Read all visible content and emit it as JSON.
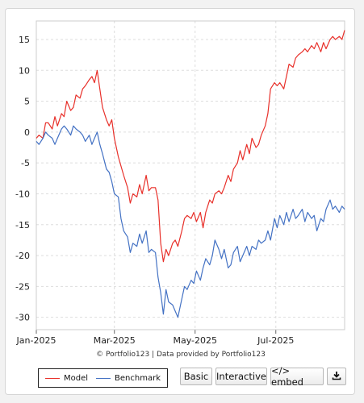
{
  "chart_data": {
    "type": "line",
    "title": "",
    "xlabel": "",
    "ylabel": "",
    "ylim": [
      -32,
      18
    ],
    "yticks": [
      15,
      10,
      5,
      0,
      -5,
      -10,
      -15,
      -20,
      -25,
      -30
    ],
    "x_tick_labels": [
      "Jan-2025",
      "Mar-2025",
      "May-2025",
      "Jul-2025"
    ],
    "x_tick_dates": [
      "2025-01-01",
      "2025-03-01",
      "2025-05-01",
      "2025-07-01"
    ],
    "x_range": [
      "2025-01-01",
      "2025-08-22"
    ],
    "grid": true,
    "legend_position": "bottom-left",
    "series": [
      {
        "name": "Model",
        "color": "#e8302a",
        "points": [
          [
            "2025-01-01",
            -1.0
          ],
          [
            "2025-01-03",
            -0.5
          ],
          [
            "2025-01-06",
            -1.0
          ],
          [
            "2025-01-08",
            1.5
          ],
          [
            "2025-01-10",
            1.5
          ],
          [
            "2025-01-13",
            0.5
          ],
          [
            "2025-01-15",
            2.5
          ],
          [
            "2025-01-17",
            1.0
          ],
          [
            "2025-01-20",
            3.0
          ],
          [
            "2025-01-22",
            2.5
          ],
          [
            "2025-01-24",
            5.0
          ],
          [
            "2025-01-27",
            3.5
          ],
          [
            "2025-01-29",
            4.0
          ],
          [
            "2025-01-31",
            6.0
          ],
          [
            "2025-02-03",
            5.5
          ],
          [
            "2025-02-05",
            7.0
          ],
          [
            "2025-02-07",
            7.5
          ],
          [
            "2025-02-10",
            8.5
          ],
          [
            "2025-02-12",
            9.0
          ],
          [
            "2025-02-14",
            8.0
          ],
          [
            "2025-02-16",
            10.0
          ],
          [
            "2025-02-18",
            7.0
          ],
          [
            "2025-02-20",
            4.0
          ],
          [
            "2025-02-23",
            2.0
          ],
          [
            "2025-02-25",
            1.0
          ],
          [
            "2025-02-27",
            2.0
          ],
          [
            "2025-03-01",
            -1.0
          ],
          [
            "2025-03-04",
            -4.0
          ],
          [
            "2025-03-06",
            -5.5
          ],
          [
            "2025-03-08",
            -7.0
          ],
          [
            "2025-03-11",
            -9.0
          ],
          [
            "2025-03-13",
            -11.5
          ],
          [
            "2025-03-15",
            -10.0
          ],
          [
            "2025-03-18",
            -10.5
          ],
          [
            "2025-03-20",
            -8.5
          ],
          [
            "2025-03-22",
            -10.0
          ],
          [
            "2025-03-25",
            -7.0
          ],
          [
            "2025-03-27",
            -9.5
          ],
          [
            "2025-03-29",
            -9.0
          ],
          [
            "2025-04-01",
            -9.0
          ],
          [
            "2025-04-03",
            -11.0
          ],
          [
            "2025-04-05",
            -18.0
          ],
          [
            "2025-04-07",
            -21.0
          ],
          [
            "2025-04-09",
            -19.0
          ],
          [
            "2025-04-11",
            -20.0
          ],
          [
            "2025-04-14",
            -18.0
          ],
          [
            "2025-04-16",
            -17.5
          ],
          [
            "2025-04-18",
            -18.5
          ],
          [
            "2025-04-21",
            -16.0
          ],
          [
            "2025-04-23",
            -14.0
          ],
          [
            "2025-04-25",
            -13.5
          ],
          [
            "2025-04-28",
            -14.0
          ],
          [
            "2025-04-30",
            -13.0
          ],
          [
            "2025-05-02",
            -14.5
          ],
          [
            "2025-05-05",
            -13.0
          ],
          [
            "2025-05-07",
            -15.5
          ],
          [
            "2025-05-09",
            -13.0
          ],
          [
            "2025-05-12",
            -11.0
          ],
          [
            "2025-05-14",
            -11.5
          ],
          [
            "2025-05-16",
            -10.0
          ],
          [
            "2025-05-19",
            -9.5
          ],
          [
            "2025-05-21",
            -10.0
          ],
          [
            "2025-05-23",
            -9.0
          ],
          [
            "2025-05-26",
            -7.0
          ],
          [
            "2025-05-28",
            -8.0
          ],
          [
            "2025-05-30",
            -6.0
          ],
          [
            "2025-06-02",
            -5.0
          ],
          [
            "2025-06-04",
            -3.0
          ],
          [
            "2025-06-06",
            -4.5
          ],
          [
            "2025-06-09",
            -2.0
          ],
          [
            "2025-06-11",
            -3.5
          ],
          [
            "2025-06-13",
            -1.0
          ],
          [
            "2025-06-16",
            -2.5
          ],
          [
            "2025-06-18",
            -2.0
          ],
          [
            "2025-06-20",
            -0.5
          ],
          [
            "2025-06-23",
            1.0
          ],
          [
            "2025-06-25",
            3.0
          ],
          [
            "2025-06-27",
            7.0
          ],
          [
            "2025-06-30",
            8.0
          ],
          [
            "2025-07-02",
            7.5
          ],
          [
            "2025-07-04",
            8.0
          ],
          [
            "2025-07-07",
            7.0
          ],
          [
            "2025-07-09",
            9.0
          ],
          [
            "2025-07-11",
            11.0
          ],
          [
            "2025-07-14",
            10.5
          ],
          [
            "2025-07-16",
            12.0
          ],
          [
            "2025-07-18",
            12.5
          ],
          [
            "2025-07-21",
            13.0
          ],
          [
            "2025-07-23",
            13.5
          ],
          [
            "2025-07-25",
            13.0
          ],
          [
            "2025-07-28",
            14.0
          ],
          [
            "2025-07-30",
            13.5
          ],
          [
            "2025-08-01",
            14.5
          ],
          [
            "2025-08-04",
            13.0
          ],
          [
            "2025-08-06",
            14.5
          ],
          [
            "2025-08-08",
            13.5
          ],
          [
            "2025-08-11",
            15.0
          ],
          [
            "2025-08-13",
            15.5
          ],
          [
            "2025-08-15",
            15.0
          ],
          [
            "2025-08-18",
            15.5
          ],
          [
            "2025-08-20",
            15.0
          ],
          [
            "2025-08-22",
            16.5
          ]
        ]
      },
      {
        "name": "Benchmark",
        "color": "#4472c4",
        "points": [
          [
            "2025-01-01",
            -1.5
          ],
          [
            "2025-01-03",
            -2.0
          ],
          [
            "2025-01-06",
            -1.0
          ],
          [
            "2025-01-08",
            0.0
          ],
          [
            "2025-01-10",
            -0.5
          ],
          [
            "2025-01-13",
            -1.0
          ],
          [
            "2025-01-15",
            -2.0
          ],
          [
            "2025-01-17",
            -1.0
          ],
          [
            "2025-01-20",
            0.5
          ],
          [
            "2025-01-22",
            1.0
          ],
          [
            "2025-01-24",
            0.5
          ],
          [
            "2025-01-27",
            -0.5
          ],
          [
            "2025-01-29",
            1.0
          ],
          [
            "2025-01-31",
            0.5
          ],
          [
            "2025-02-03",
            0.0
          ],
          [
            "2025-02-05",
            -0.5
          ],
          [
            "2025-02-07",
            -1.5
          ],
          [
            "2025-02-10",
            -0.5
          ],
          [
            "2025-02-12",
            -2.0
          ],
          [
            "2025-02-14",
            -1.0
          ],
          [
            "2025-02-16",
            0.0
          ],
          [
            "2025-02-18",
            -2.0
          ],
          [
            "2025-02-20",
            -3.5
          ],
          [
            "2025-02-23",
            -6.0
          ],
          [
            "2025-02-25",
            -6.5
          ],
          [
            "2025-02-27",
            -8.0
          ],
          [
            "2025-03-01",
            -10.0
          ],
          [
            "2025-03-04",
            -10.5
          ],
          [
            "2025-03-06",
            -14.0
          ],
          [
            "2025-03-08",
            -16.0
          ],
          [
            "2025-03-11",
            -17.0
          ],
          [
            "2025-03-13",
            -19.5
          ],
          [
            "2025-03-15",
            -18.0
          ],
          [
            "2025-03-18",
            -18.5
          ],
          [
            "2025-03-20",
            -16.5
          ],
          [
            "2025-03-22",
            -18.0
          ],
          [
            "2025-03-25",
            -16.0
          ],
          [
            "2025-03-27",
            -19.5
          ],
          [
            "2025-03-29",
            -19.0
          ],
          [
            "2025-04-01",
            -19.5
          ],
          [
            "2025-04-03",
            -23.5
          ],
          [
            "2025-04-05",
            -26.0
          ],
          [
            "2025-04-07",
            -29.5
          ],
          [
            "2025-04-09",
            -25.5
          ],
          [
            "2025-04-11",
            -27.5
          ],
          [
            "2025-04-14",
            -28.0
          ],
          [
            "2025-04-16",
            -29.0
          ],
          [
            "2025-04-18",
            -30.0
          ],
          [
            "2025-04-21",
            -27.0
          ],
          [
            "2025-04-23",
            -25.0
          ],
          [
            "2025-04-25",
            -25.5
          ],
          [
            "2025-04-28",
            -24.0
          ],
          [
            "2025-04-30",
            -24.5
          ],
          [
            "2025-05-02",
            -22.5
          ],
          [
            "2025-05-05",
            -24.0
          ],
          [
            "2025-05-07",
            -22.0
          ],
          [
            "2025-05-09",
            -20.5
          ],
          [
            "2025-05-12",
            -21.5
          ],
          [
            "2025-05-14",
            -20.0
          ],
          [
            "2025-05-16",
            -17.5
          ],
          [
            "2025-05-19",
            -19.0
          ],
          [
            "2025-05-21",
            -20.5
          ],
          [
            "2025-05-23",
            -19.0
          ],
          [
            "2025-05-26",
            -22.0
          ],
          [
            "2025-05-28",
            -21.5
          ],
          [
            "2025-05-30",
            -19.5
          ],
          [
            "2025-06-02",
            -18.5
          ],
          [
            "2025-06-04",
            -21.0
          ],
          [
            "2025-06-06",
            -20.0
          ],
          [
            "2025-06-09",
            -18.5
          ],
          [
            "2025-06-11",
            -20.0
          ],
          [
            "2025-06-13",
            -18.5
          ],
          [
            "2025-06-16",
            -19.0
          ],
          [
            "2025-06-18",
            -17.5
          ],
          [
            "2025-06-20",
            -18.0
          ],
          [
            "2025-06-23",
            -17.5
          ],
          [
            "2025-06-25",
            -16.0
          ],
          [
            "2025-06-27",
            -17.5
          ],
          [
            "2025-06-30",
            -14.0
          ],
          [
            "2025-07-02",
            -15.5
          ],
          [
            "2025-07-04",
            -13.5
          ],
          [
            "2025-07-07",
            -15.0
          ],
          [
            "2025-07-09",
            -13.0
          ],
          [
            "2025-07-11",
            -14.5
          ],
          [
            "2025-07-14",
            -12.5
          ],
          [
            "2025-07-16",
            -14.0
          ],
          [
            "2025-07-18",
            -13.5
          ],
          [
            "2025-07-21",
            -12.5
          ],
          [
            "2025-07-23",
            -14.5
          ],
          [
            "2025-07-25",
            -13.0
          ],
          [
            "2025-07-28",
            -14.0
          ],
          [
            "2025-07-30",
            -13.5
          ],
          [
            "2025-08-01",
            -16.0
          ],
          [
            "2025-08-04",
            -14.0
          ],
          [
            "2025-08-06",
            -14.5
          ],
          [
            "2025-08-08",
            -12.5
          ],
          [
            "2025-08-11",
            -11.0
          ],
          [
            "2025-08-13",
            -12.5
          ],
          [
            "2025-08-15",
            -12.0
          ],
          [
            "2025-08-18",
            -13.0
          ],
          [
            "2025-08-20",
            -12.0
          ],
          [
            "2025-08-22",
            -12.5
          ]
        ]
      }
    ]
  },
  "credit": "© Portfolio123 | Data provided by Portfolio123",
  "legend": {
    "items": [
      {
        "label": "Model",
        "color": "#e8302a"
      },
      {
        "label": "Benchmark",
        "color": "#4472c4"
      }
    ]
  },
  "buttons": {
    "basic": "Basic",
    "interactive": "Interactive",
    "embed": "</> embed"
  },
  "icons": {
    "download": "download-icon"
  }
}
